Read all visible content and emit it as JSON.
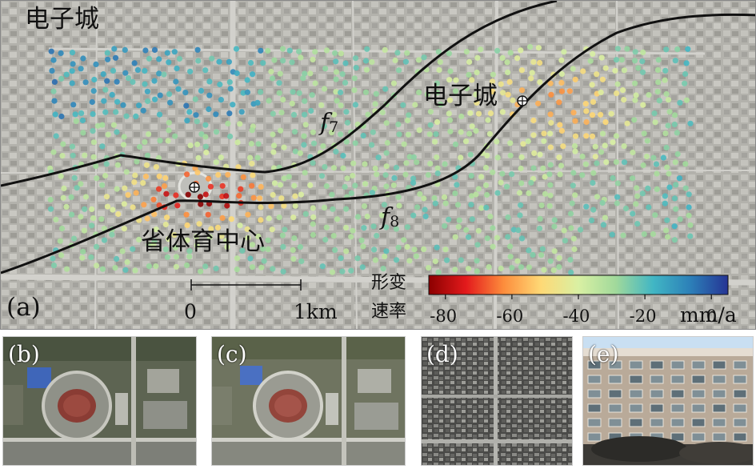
{
  "panels": {
    "a": {
      "label": "(a)",
      "region_label": "电子城",
      "place_electronic_city": "电子城",
      "place_stadium": "省体育中心",
      "fault_f7": {
        "letter": "f",
        "index": "7"
      },
      "fault_f8": {
        "letter": "f",
        "index": "8"
      },
      "scale_start": "0",
      "scale_end": "1km",
      "colorbar_title_line1": "形变",
      "colorbar_title_line2": "速率",
      "colorbar_ticks": [
        {
          "value": -80,
          "label": "-80"
        },
        {
          "value": -60,
          "label": "-60"
        },
        {
          "value": -40,
          "label": "-40"
        },
        {
          "value": -20,
          "label": "-20"
        },
        {
          "value": 0,
          "label": "0"
        }
      ],
      "colorbar_unit": "mm/a",
      "colorbar_range": [
        -85,
        5
      ],
      "colormap": [
        "#8b0000",
        "#e31a1c",
        "#fd8d3c",
        "#fed976",
        "#d9f0a3",
        "#a1d99b",
        "#41b6c4",
        "#2c7fb8",
        "#253494"
      ]
    },
    "b": {
      "label": "(b)"
    },
    "c": {
      "label": "(c)"
    },
    "d": {
      "label": "(d)"
    },
    "e": {
      "label": "(e)"
    }
  }
}
